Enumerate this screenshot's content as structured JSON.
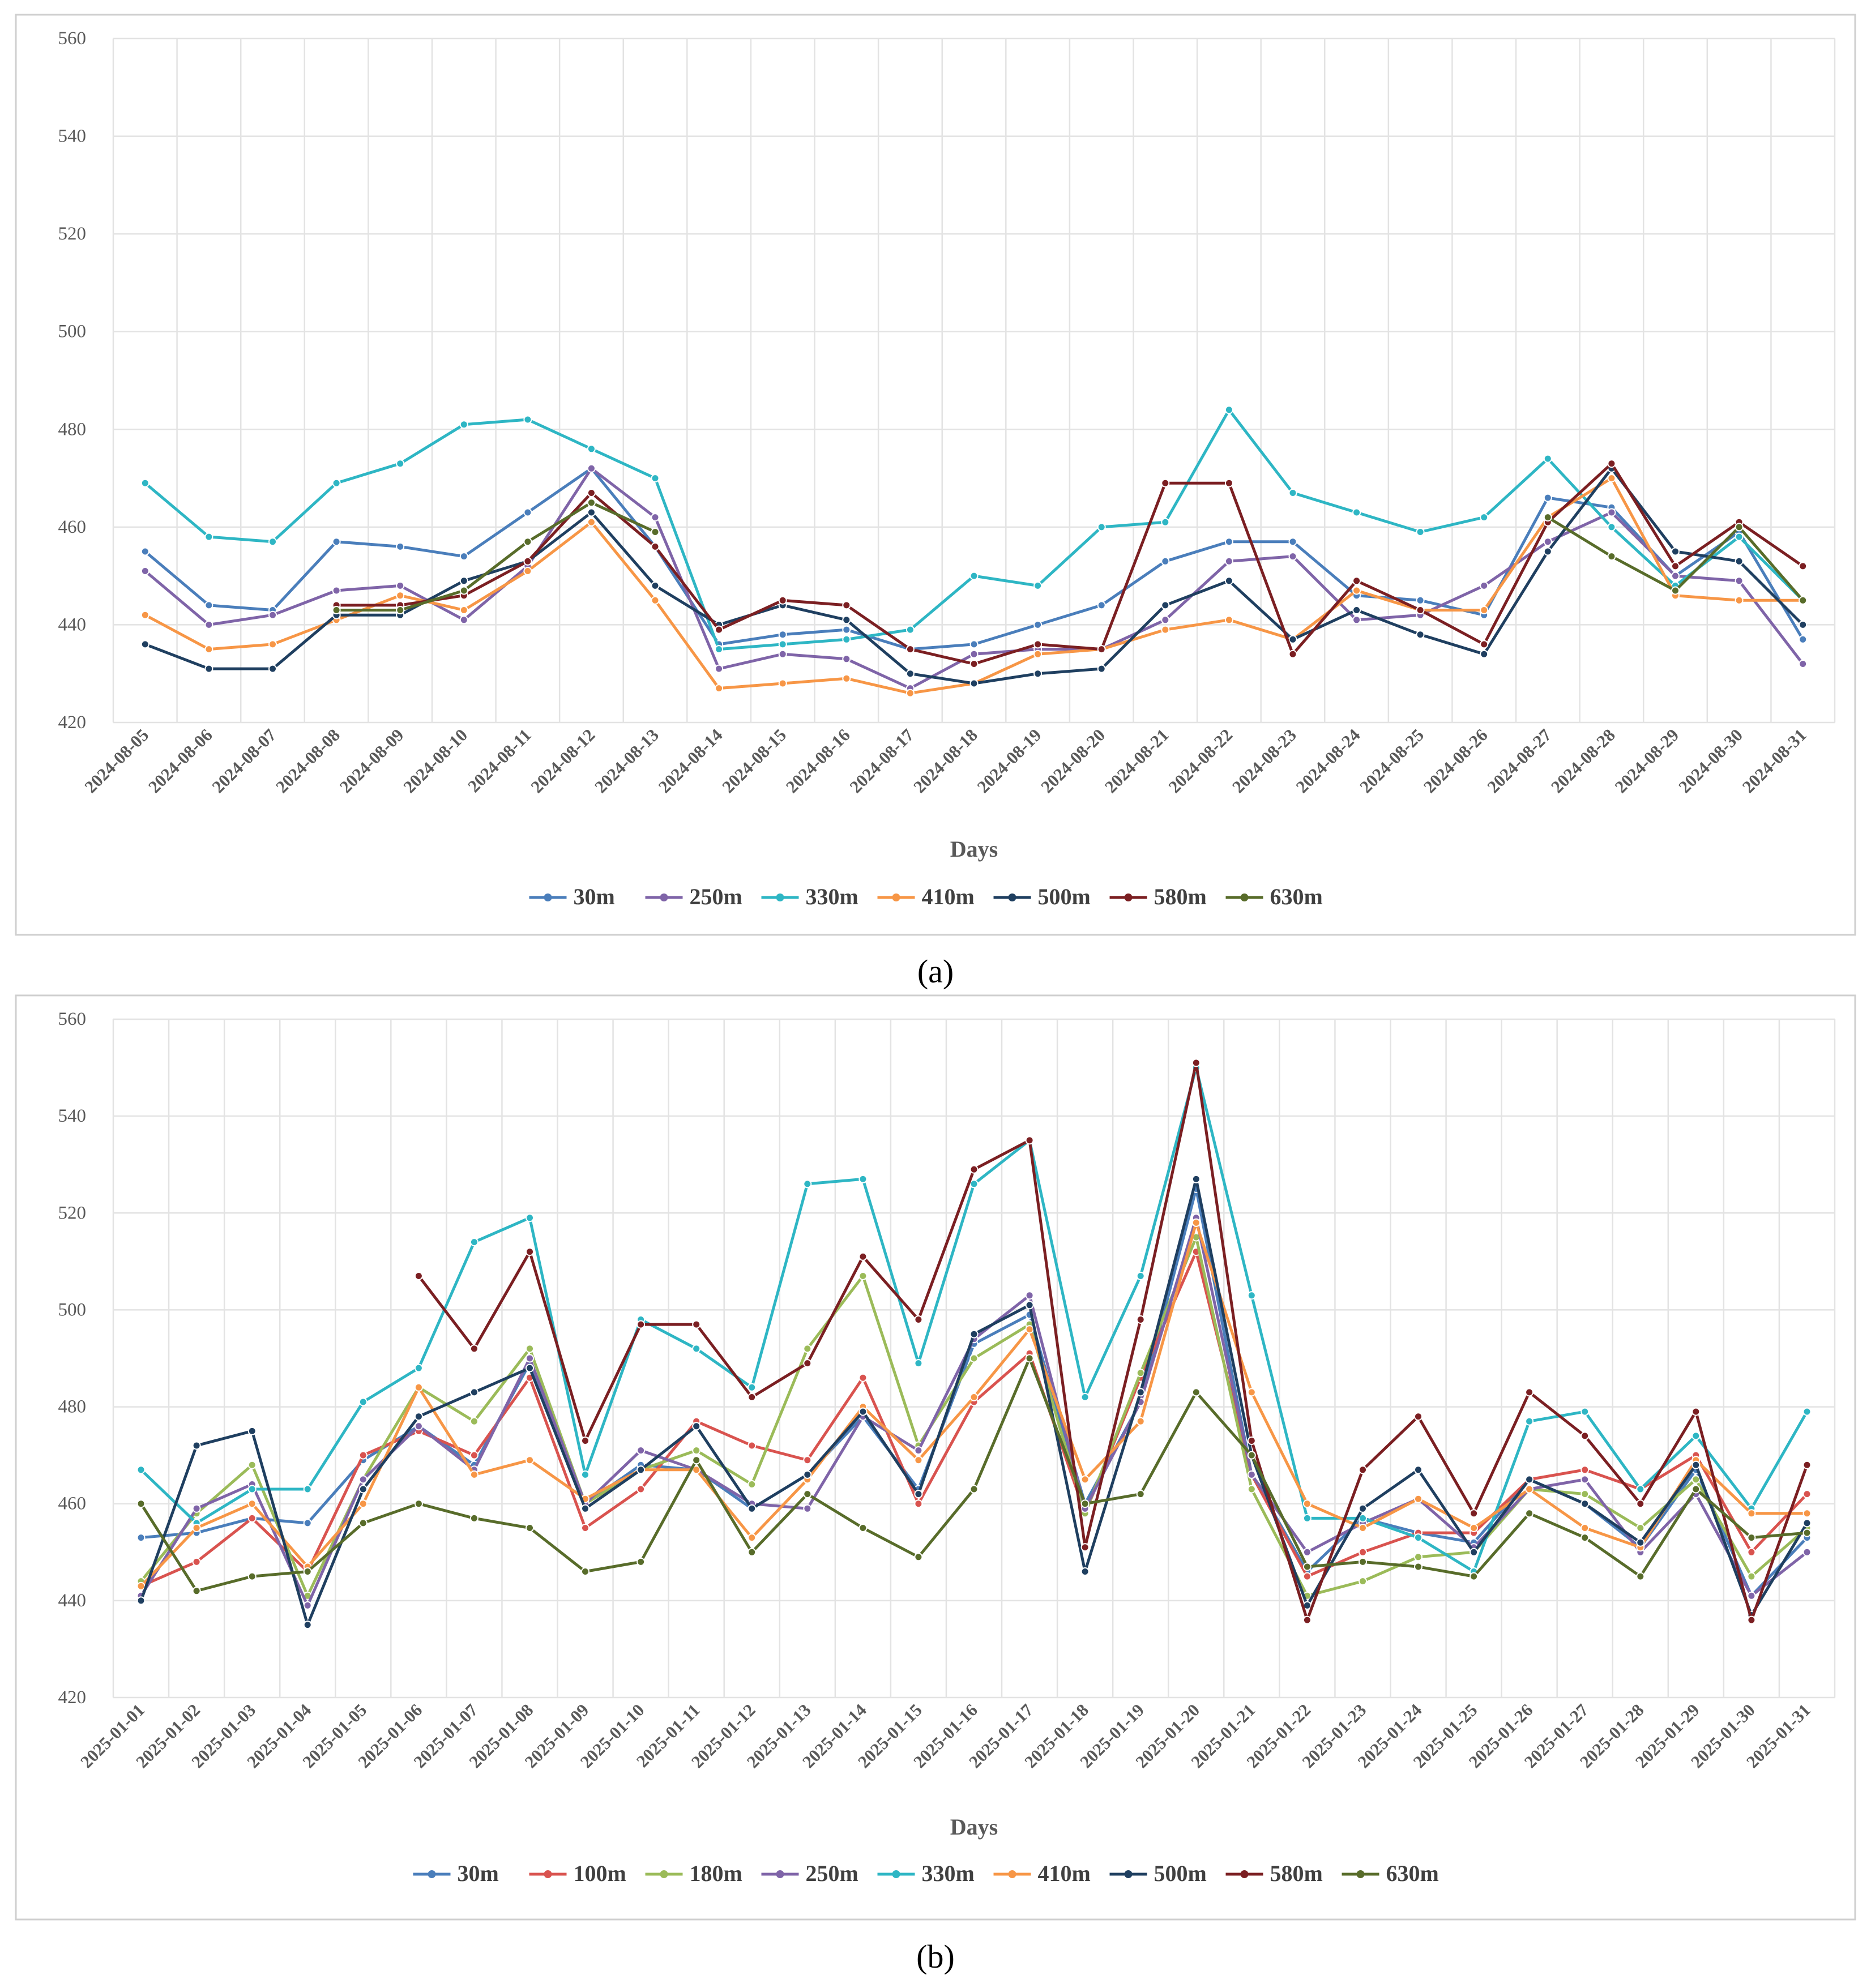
{
  "chart_data": [
    {
      "type": "line",
      "panel_label": "(a)",
      "title": "",
      "xlabel": "Days",
      "ylabel": "",
      "ylim": [
        420,
        560
      ],
      "yticks": [
        420,
        440,
        460,
        480,
        500,
        520,
        540,
        560
      ],
      "grid": true,
      "legend_position": "bottom",
      "categories": [
        "2024-08-05",
        "2024-08-06",
        "2024-08-07",
        "2024-08-08",
        "2024-08-09",
        "2024-08-10",
        "2024-08-11",
        "2024-08-12",
        "2024-08-13",
        "2024-08-14",
        "2024-08-15",
        "2024-08-16",
        "2024-08-17",
        "2024-08-18",
        "2024-08-19",
        "2024-08-20",
        "2024-08-21",
        "2024-08-22",
        "2024-08-23",
        "2024-08-24",
        "2024-08-25",
        "2024-08-26",
        "2024-08-27",
        "2024-08-28",
        "2024-08-29",
        "2024-08-30",
        "2024-08-31"
      ],
      "series": [
        {
          "name": "30m",
          "color": "#4a7ebb",
          "values": [
            455,
            444,
            443,
            457,
            456,
            454,
            463,
            472,
            456,
            436,
            438,
            439,
            435,
            436,
            440,
            444,
            453,
            457,
            457,
            446,
            445,
            442,
            466,
            464,
            450,
            459,
            437
          ]
        },
        {
          "name": "250m",
          "color": "#7f64a8",
          "values": [
            451,
            440,
            442,
            447,
            448,
            441,
            452,
            472,
            462,
            431,
            434,
            433,
            427,
            434,
            435,
            435,
            441,
            453,
            454,
            441,
            442,
            448,
            457,
            463,
            450,
            449,
            432
          ]
        },
        {
          "name": "330m",
          "color": "#2eb6c4",
          "values": [
            469,
            458,
            457,
            469,
            473,
            481,
            482,
            476,
            470,
            435,
            436,
            437,
            439,
            450,
            448,
            460,
            461,
            484,
            467,
            463,
            459,
            462,
            474,
            460,
            448,
            458,
            445
          ]
        },
        {
          "name": "410m",
          "color": "#f79646",
          "values": [
            442,
            435,
            436,
            441,
            446,
            443,
            451,
            461,
            445,
            427,
            428,
            429,
            426,
            428,
            434,
            435,
            439,
            441,
            437,
            447,
            443,
            443,
            462,
            470,
            446,
            445,
            445
          ]
        },
        {
          "name": "500m",
          "color": "#1f3f60",
          "values": [
            436,
            431,
            431,
            442,
            442,
            449,
            453,
            463,
            448,
            440,
            444,
            441,
            430,
            428,
            430,
            431,
            444,
            449,
            437,
            443,
            438,
            434,
            455,
            472,
            455,
            453,
            440
          ]
        },
        {
          "name": "580m",
          "color": "#7b1f22",
          "values": [
            null,
            null,
            null,
            444,
            444,
            446,
            453,
            467,
            456,
            439,
            445,
            444,
            435,
            432,
            436,
            435,
            469,
            469,
            434,
            449,
            443,
            436,
            461,
            473,
            452,
            461,
            452
          ]
        },
        {
          "name": "630m",
          "color": "#586c2a",
          "values": [
            null,
            null,
            null,
            443,
            443,
            447,
            457,
            465,
            459,
            null,
            null,
            null,
            null,
            null,
            null,
            null,
            null,
            null,
            null,
            null,
            null,
            null,
            462,
            454,
            447,
            460,
            445
          ]
        }
      ]
    },
    {
      "type": "line",
      "panel_label": "(b)",
      "title": "",
      "xlabel": "Days",
      "ylabel": "",
      "ylim": [
        420,
        560
      ],
      "yticks": [
        420,
        440,
        460,
        480,
        500,
        520,
        540,
        560
      ],
      "grid": true,
      "legend_position": "bottom",
      "categories": [
        "2025-01-01",
        "2025-01-02",
        "2025-01-03",
        "2025-01-04",
        "2025-01-05",
        "2025-01-06",
        "2025-01-07",
        "2025-01-08",
        "2025-01-09",
        "2025-01-10",
        "2025-01-11",
        "2025-01-12",
        "2025-01-13",
        "2025-01-14",
        "2025-01-15",
        "2025-01-16",
        "2025-01-17",
        "2025-01-18",
        "2025-01-19",
        "2025-01-20",
        "2025-01-21",
        "2025-01-22",
        "2025-01-23",
        "2025-01-24",
        "2025-01-25",
        "2025-01-26",
        "2025-01-27",
        "2025-01-28",
        "2025-01-29",
        "2025-01-30",
        "2025-01-31"
      ],
      "series": [
        {
          "name": "30m",
          "color": "#4a7ebb",
          "values": [
            453,
            454,
            457,
            456,
            469,
            476,
            468,
            489,
            460,
            468,
            467,
            459,
            466,
            478,
            463,
            493,
            499,
            460,
            481,
            525,
            466,
            446,
            457,
            454,
            452,
            465,
            460,
            451,
            467,
            441,
            453
          ]
        },
        {
          "name": "100m",
          "color": "#d9534f",
          "values": [
            443,
            448,
            457,
            446,
            470,
            475,
            470,
            486,
            455,
            463,
            477,
            472,
            469,
            486,
            460,
            481,
            491,
            458,
            486,
            512,
            466,
            445,
            450,
            454,
            454,
            465,
            467,
            463,
            470,
            450,
            462
          ]
        },
        {
          "name": "180m",
          "color": "#9bbb59",
          "values": [
            444,
            458,
            468,
            441,
            465,
            484,
            477,
            492,
            460,
            467,
            471,
            464,
            492,
            507,
            472,
            490,
            497,
            458,
            487,
            515,
            463,
            441,
            444,
            449,
            450,
            463,
            462,
            455,
            465,
            445,
            455
          ]
        },
        {
          "name": "250m",
          "color": "#7f64a8",
          "values": [
            441,
            459,
            464,
            439,
            465,
            476,
            467,
            490,
            460,
            471,
            467,
            460,
            459,
            478,
            471,
            494,
            503,
            459,
            481,
            519,
            466,
            450,
            456,
            461,
            451,
            463,
            465,
            450,
            462,
            441,
            450
          ]
        },
        {
          "name": "330m",
          "color": "#2eb6c4",
          "values": [
            467,
            456,
            463,
            463,
            481,
            488,
            514,
            519,
            466,
            498,
            492,
            484,
            526,
            527,
            489,
            526,
            535,
            482,
            507,
            550,
            503,
            457,
            457,
            453,
            446,
            477,
            479,
            463,
            474,
            459,
            479
          ]
        },
        {
          "name": "410m",
          "color": "#f79646",
          "values": [
            443,
            455,
            460,
            447,
            460,
            484,
            466,
            469,
            461,
            467,
            467,
            453,
            465,
            480,
            469,
            482,
            496,
            465,
            477,
            518,
            483,
            460,
            455,
            461,
            455,
            463,
            455,
            451,
            469,
            458,
            458
          ]
        },
        {
          "name": "500m",
          "color": "#1f3f60",
          "values": [
            440,
            472,
            475,
            435,
            463,
            478,
            483,
            488,
            459,
            467,
            476,
            459,
            466,
            479,
            462,
            495,
            501,
            446,
            483,
            527,
            470,
            439,
            459,
            467,
            450,
            465,
            460,
            452,
            468,
            437,
            456
          ]
        },
        {
          "name": "580m",
          "color": "#7b1f22",
          "values": [
            null,
            null,
            null,
            null,
            null,
            507,
            492,
            512,
            473,
            497,
            497,
            482,
            489,
            511,
            498,
            529,
            535,
            451,
            498,
            551,
            473,
            436,
            467,
            478,
            458,
            483,
            474,
            460,
            479,
            436,
            468
          ]
        },
        {
          "name": "630m",
          "color": "#586c2a",
          "values": [
            460,
            442,
            445,
            446,
            456,
            460,
            457,
            455,
            446,
            448,
            469,
            450,
            462,
            455,
            449,
            463,
            490,
            460,
            462,
            483,
            470,
            447,
            448,
            447,
            445,
            458,
            453,
            445,
            463,
            453,
            454
          ]
        }
      ]
    }
  ]
}
